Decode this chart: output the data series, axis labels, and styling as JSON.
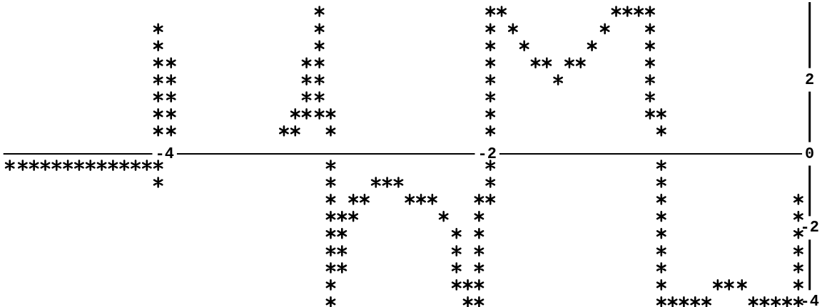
{
  "chart_data": {
    "type": "scatter",
    "marker": "cross",
    "xlim": [
      -5,
      0
    ],
    "ylim": [
      -4.1,
      4.1
    ],
    "xticks": [
      -4,
      -2
    ],
    "yticks": [
      -4,
      -2,
      0,
      2
    ],
    "series": [
      {
        "color": "#000000",
        "x": [
          -4.96,
          -4.88,
          -4.81,
          -4.74,
          -4.67,
          -4.6,
          -4.53,
          -4.46,
          -4.39,
          -4.32,
          -4.25,
          -4.18,
          -4.11,
          -4.04,
          -4.04,
          -4.04,
          -4.04,
          -4.04,
          -4.04,
          -4.04,
          -4.04,
          -4.04,
          -3.96,
          -3.96,
          -3.96,
          -3.96,
          -3.96,
          -3.26,
          -3.19,
          -3.19,
          -3.12,
          -3.12,
          -3.12,
          -3.12,
          -3.04,
          -3.04,
          -3.04,
          -3.04,
          -3.04,
          -3.04,
          -3.04,
          -2.97,
          -2.97,
          -2.97,
          -2.97,
          -2.97,
          -2.97,
          -2.97,
          -2.97,
          -2.97,
          -2.97,
          -2.97,
          -2.9,
          -2.9,
          -2.9,
          -2.9,
          -2.83,
          -2.83,
          -2.76,
          -2.69,
          -2.62,
          -2.55,
          -2.48,
          -2.41,
          -2.34,
          -2.27,
          -2.19,
          -2.19,
          -2.19,
          -2.19,
          -2.12,
          -2.12,
          -2.05,
          -2.05,
          -2.05,
          -2.05,
          -2.05,
          -2.05,
          -2.05,
          -1.98,
          -1.98,
          -1.98,
          -1.98,
          -1.98,
          -1.98,
          -1.98,
          -1.98,
          -1.98,
          -1.98,
          -1.98,
          -1.91,
          -1.84,
          -1.77,
          -1.7,
          -1.63,
          -1.56,
          -1.49,
          -1.42,
          -1.35,
          -1.27,
          -1.2,
          -1.13,
          -1.06,
          -0.99,
          -0.99,
          -0.99,
          -0.99,
          -0.99,
          -0.99,
          -0.99,
          -0.92,
          -0.92,
          -0.92,
          -0.92,
          -0.92,
          -0.92,
          -0.92,
          -0.92,
          -0.92,
          -0.92,
          -0.92,
          -0.85,
          -0.78,
          -0.71,
          -0.64,
          -0.57,
          -0.5,
          -0.42,
          -0.35,
          -0.28,
          -0.21,
          -0.14,
          -0.07,
          -0.07,
          -0.07,
          -0.07,
          -0.07,
          -0.07,
          -0.07
        ],
        "values": [
          -0.31,
          -0.31,
          -0.31,
          -0.31,
          -0.31,
          -0.31,
          -0.31,
          -0.31,
          -0.31,
          -0.31,
          -0.31,
          -0.31,
          -0.31,
          3.38,
          2.92,
          2.46,
          2.0,
          1.54,
          1.08,
          0.62,
          -0.31,
          -0.77,
          2.46,
          2.0,
          1.54,
          1.08,
          0.62,
          0.62,
          1.08,
          0.62,
          2.46,
          2.0,
          1.54,
          1.08,
          3.85,
          3.38,
          2.92,
          2.46,
          2.0,
          1.54,
          1.08,
          1.08,
          0.62,
          -0.31,
          -0.77,
          -1.23,
          -1.69,
          -2.15,
          -2.62,
          -3.08,
          -3.54,
          -4.0,
          -1.69,
          -2.15,
          -2.62,
          -3.08,
          -1.23,
          -1.69,
          -1.23,
          -0.77,
          -0.77,
          -0.77,
          -1.23,
          -1.23,
          -1.23,
          -1.69,
          -2.15,
          -2.62,
          -3.08,
          -3.54,
          -3.54,
          -4.0,
          -1.23,
          -1.69,
          -2.15,
          -2.62,
          -3.08,
          -3.54,
          -4.0,
          3.85,
          3.38,
          2.92,
          2.46,
          2.0,
          1.54,
          1.08,
          0.62,
          -0.31,
          -0.77,
          -1.23,
          3.85,
          3.38,
          2.92,
          2.46,
          2.46,
          2.0,
          2.46,
          2.46,
          2.92,
          3.38,
          3.85,
          3.85,
          3.85,
          3.85,
          3.38,
          2.92,
          2.46,
          2.0,
          1.54,
          1.08,
          1.08,
          0.62,
          -0.31,
          -0.77,
          -1.23,
          -1.69,
          -2.15,
          -2.62,
          -3.08,
          -3.54,
          -4.0,
          -4.0,
          -4.0,
          -4.0,
          -4.0,
          -3.54,
          -3.54,
          -3.54,
          -4.0,
          -4.0,
          -4.0,
          -4.0,
          -1.23,
          -1.69,
          -2.15,
          -2.62,
          -3.08,
          -3.54,
          -4.0
        ]
      }
    ]
  }
}
